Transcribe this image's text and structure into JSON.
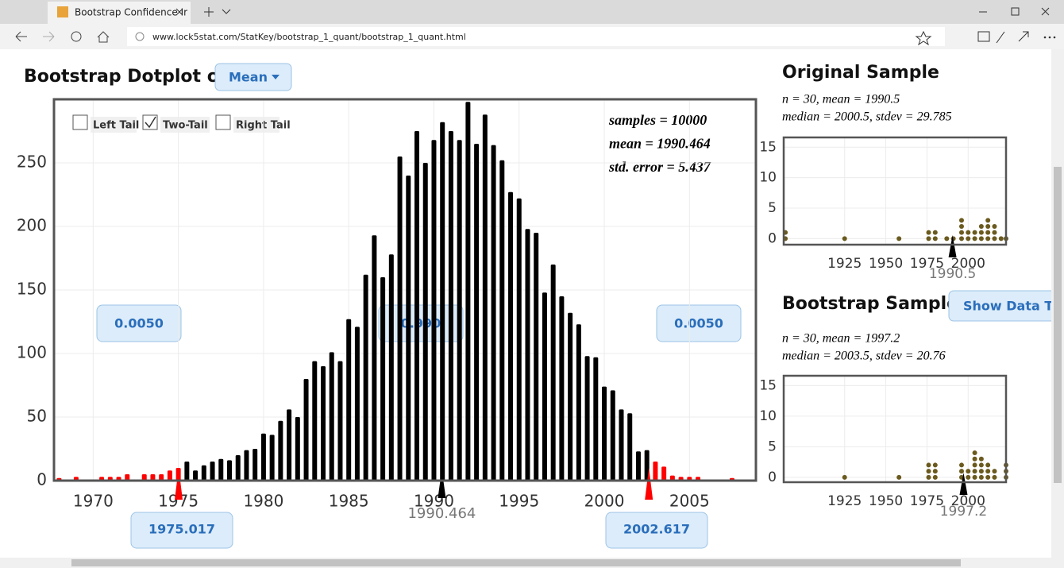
{
  "browser": {
    "tab_title": "Bootstrap Confidence Ir",
    "url": "www.lock5stat.com/StatKey/bootstrap_1_quant/bootstrap_1_quant.html"
  },
  "main": {
    "heading": "Bootstrap Dotplot of",
    "statistic": "Mean",
    "tails": [
      "Left Tail",
      "Two-Tail",
      "Right Tail"
    ],
    "selected_tail": "Two-Tail",
    "stats": [
      "samples = 10000",
      "mean = 1990.464",
      "std. error = 5.437"
    ],
    "proportions": [
      "0.0050",
      "0.990",
      "0.0050"
    ]
  },
  "original": {
    "heading": "Original Sample",
    "stats": [
      "n = 30, mean = 1990.5",
      "median = 2000.5, stdev = 29.785"
    ]
  },
  "bootstrap": {
    "heading": "Bootstrap Sample",
    "button": "Show Data Table",
    "stats": [
      "n = 30, mean = 1997.2",
      "median = 2003.5, stdev = 20.76"
    ]
  },
  "chart_data": [
    {
      "type": "bar",
      "x": [
        1968,
        1968.5,
        1969,
        1969.5,
        1970,
        1970.5,
        1971,
        1971.5,
        1972,
        1972.5,
        1973,
        1973.5,
        1974,
        1974.5,
        1975,
        1975.5,
        1976,
        1976.5,
        1977,
        1977.5,
        1978,
        1978.5,
        1979,
        1979.5,
        1980,
        1980.5,
        1981,
        1981.5,
        1982,
        1982.5,
        1983,
        1983.5,
        1984,
        1984.5,
        1985,
        1985.5,
        1986,
        1986.5,
        1987,
        1987.5,
        1988,
        1988.5,
        1989,
        1989.5,
        1990,
        1990.5,
        1991,
        1991.5,
        1992,
        1992.5,
        1993,
        1993.5,
        1994,
        1994.5,
        1995,
        1995.5,
        1996,
        1996.5,
        1997,
        1997.5,
        1998,
        1998.5,
        1999,
        1999.5,
        2000,
        2000.5,
        2001,
        2001.5,
        2002,
        2002.5,
        2003,
        2003.5,
        2004,
        2004.5,
        2005,
        2005.5,
        2006,
        2006.5,
        2007,
        2007.5,
        2008
      ],
      "values": [
        2,
        0,
        3,
        0,
        0,
        3,
        3,
        3,
        5,
        0,
        5,
        5,
        5,
        8,
        10,
        15,
        8,
        12,
        15,
        17,
        16,
        20,
        24,
        25,
        37,
        36,
        47,
        56,
        50,
        80,
        94,
        90,
        101,
        94,
        127,
        121,
        162,
        193,
        160,
        178,
        255,
        240,
        275,
        250,
        268,
        282,
        275,
        268,
        298,
        265,
        288,
        264,
        252,
        227,
        222,
        198,
        195,
        148,
        170,
        145,
        132,
        123,
        98,
        97,
        74,
        71,
        56,
        53,
        23,
        24,
        15,
        11,
        4,
        3,
        3,
        3,
        0,
        0,
        0,
        2,
        0
      ],
      "color": "#000000",
      "tail_color": "#ff0000",
      "xlim": [
        1967.7,
        2008.9
      ],
      "ylim": [
        0,
        300
      ],
      "xticks": [
        1970,
        1975,
        1980,
        1985,
        1990,
        1995,
        2000,
        2005
      ],
      "yticks": [
        0,
        50,
        100,
        150,
        200,
        250
      ],
      "grid": true,
      "marker": 1990.464,
      "interval": [
        1975.017,
        2002.617
      ]
    },
    {
      "type": "dot",
      "x": [
        1889,
        1925,
        1958,
        1976,
        1980,
        1987,
        1991,
        1996,
        2000,
        2004,
        2008,
        2012,
        2016,
        2020,
        2023
      ],
      "counts": [
        2,
        1,
        1,
        2,
        2,
        1,
        1,
        4,
        2,
        2,
        3,
        4,
        3,
        1,
        1
      ],
      "color": "#6b5a1e",
      "xlim": [
        1888,
        2023
      ],
      "ylim": [
        -1,
        16.6
      ],
      "xticks": [
        1925,
        1950,
        1975,
        2000
      ],
      "yticks": [
        0,
        5,
        10,
        15
      ],
      "grid": true,
      "marker": 1990.5
    },
    {
      "type": "dot",
      "x": [
        1925,
        1958,
        1976,
        1980,
        1996,
        2000,
        2004,
        2008,
        2012,
        2016,
        2023
      ],
      "counts": [
        1,
        1,
        3,
        3,
        3,
        2,
        5,
        4,
        3,
        2,
        3
      ],
      "color": "#6b5a1e",
      "xlim": [
        1888,
        2023
      ],
      "ylim": [
        -0.8,
        16.6
      ],
      "xticks": [
        1925,
        1950,
        1975,
        2000
      ],
      "yticks": [
        0,
        5,
        10,
        15
      ],
      "grid": true,
      "marker": 1997.2
    }
  ]
}
